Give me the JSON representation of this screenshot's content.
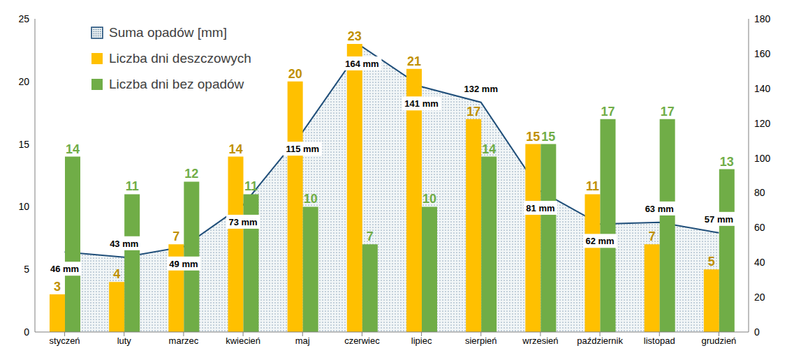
{
  "chart_data": {
    "type": "bar",
    "categories": [
      "styczeń",
      "luty",
      "marzec",
      "kwiecień",
      "maj",
      "czerwiec",
      "lipiec",
      "sierpień",
      "wrzesień",
      "październik",
      "listopad",
      "grudzień"
    ],
    "series": [
      {
        "name": "Suma opadów [mm]",
        "type": "area",
        "axis": "y2",
        "color": "#1F4E79",
        "values": [
          46,
          43,
          49,
          73,
          115,
          164,
          141,
          132,
          81,
          62,
          63,
          57
        ],
        "value_labels": [
          "46 mm",
          "43 mm",
          "49 mm",
          "73 mm",
          "115 mm",
          "164 mm",
          "141 mm",
          "132 mm",
          "81 mm",
          "62 mm",
          "63 mm",
          "57 mm"
        ]
      },
      {
        "name": "Liczba dni deszczowych",
        "type": "bar",
        "color": "#FFC000",
        "values": [
          3,
          4,
          7,
          14,
          20,
          23,
          21,
          17,
          15,
          11,
          7,
          5
        ]
      },
      {
        "name": "Liczba dni bez opadów",
        "type": "bar",
        "color": "#70AD47",
        "values": [
          14,
          11,
          12,
          11,
          10,
          7,
          10,
          14,
          15,
          17,
          17,
          13
        ]
      }
    ],
    "ylim": [
      0,
      25
    ],
    "yticks": [
      0,
      5,
      10,
      15,
      20,
      25
    ],
    "y2lim": [
      0,
      180
    ],
    "y2ticks": [
      0,
      20,
      40,
      60,
      80,
      100,
      120,
      140,
      160,
      180
    ],
    "legend": "upper left",
    "grid": false,
    "data_labels": true
  }
}
